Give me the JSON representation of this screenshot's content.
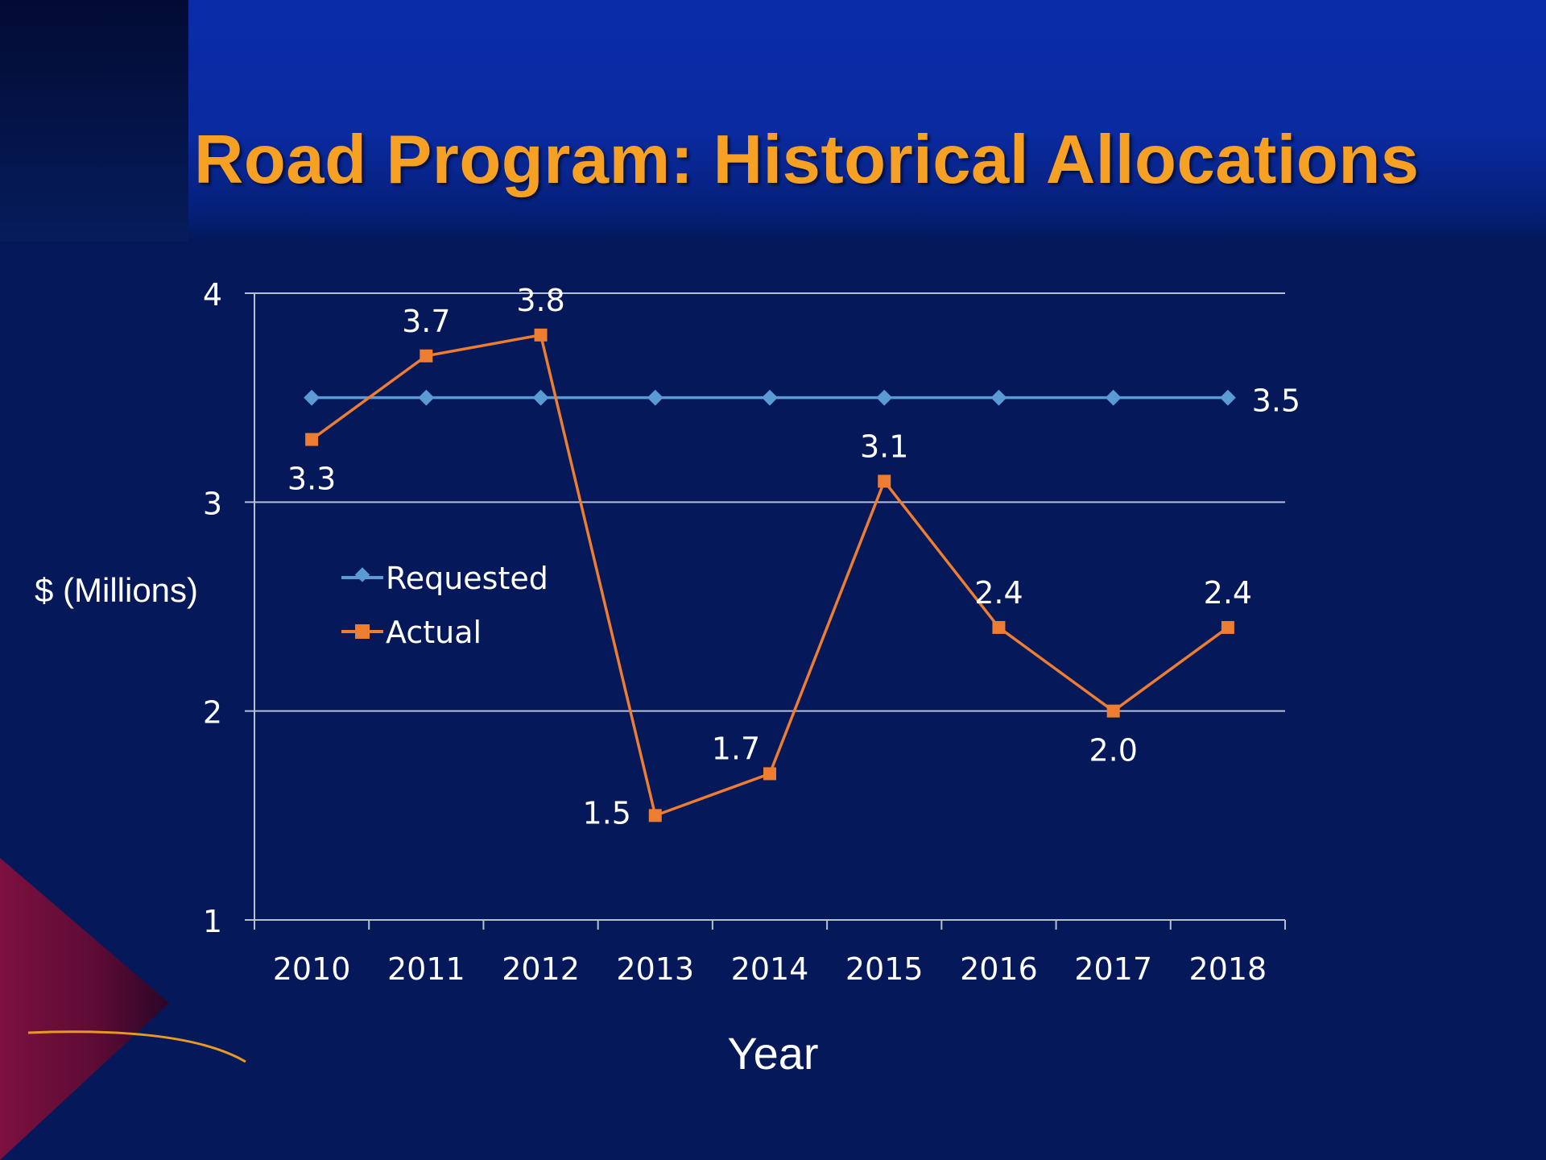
{
  "slide": {
    "title": "Road Program: Historical Allocations"
  },
  "colors": {
    "title": "#f6a124",
    "requested": "#5b9bd5",
    "actual": "#ed7d31",
    "axis": "#b7bfd3",
    "background": "#04185a"
  },
  "chart_data": {
    "type": "line",
    "x": [
      "2010",
      "2011",
      "2012",
      "2013",
      "2014",
      "2015",
      "2016",
      "2017",
      "2018"
    ],
    "series": [
      {
        "name": "Requested",
        "values": [
          3.5,
          3.5,
          3.5,
          3.5,
          3.5,
          3.5,
          3.5,
          3.5,
          3.5
        ],
        "marker": "diamond",
        "data_labels": [
          "",
          "",
          "",
          "",
          "",
          "",
          "",
          "",
          "3.5"
        ]
      },
      {
        "name": "Actual",
        "values": [
          3.3,
          3.7,
          3.8,
          1.5,
          1.7,
          3.1,
          2.4,
          2.0,
          2.4
        ],
        "marker": "square",
        "data_labels": [
          "3.3",
          "3.7",
          "3.8",
          "1.5",
          "1.7",
          "3.1",
          "2.4",
          "2.0",
          "2.4"
        ]
      }
    ],
    "xlabel": "Year",
    "ylabel": "$ (Millions)",
    "ylim": [
      1,
      4
    ],
    "yticks": [
      "1",
      "2",
      "3",
      "4"
    ],
    "grid": true,
    "legend": "inside-left"
  }
}
